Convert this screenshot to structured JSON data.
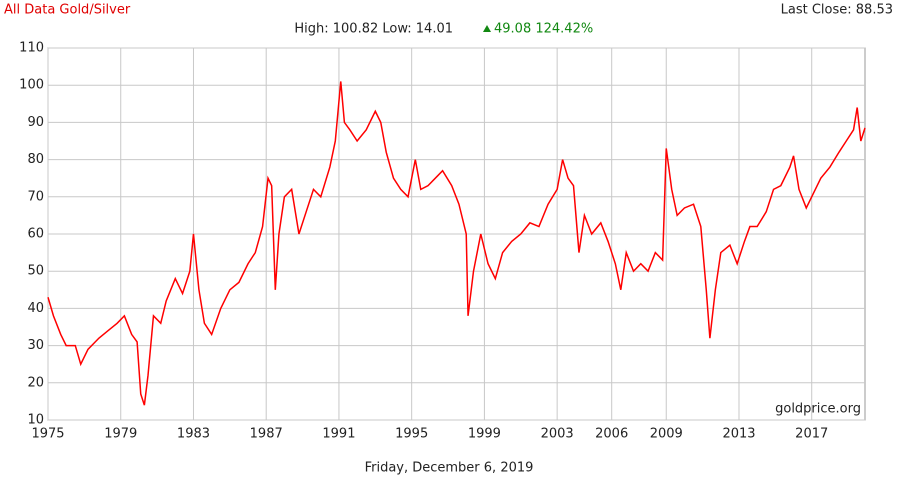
{
  "chart_data": {
    "type": "line",
    "title": "All Data Gold/Silver",
    "last_close": "Last Close: 88.53",
    "stats": "High: 100.82 Low: 14.01",
    "change": "49.08 124.42%",
    "watermark": "goldprice.org",
    "footer": "Friday, December 6, 2019",
    "grid": true,
    "xlim": [
      1975,
      2019.93
    ],
    "ylim": [
      10,
      110
    ],
    "yticks": [
      10,
      20,
      30,
      40,
      50,
      60,
      70,
      80,
      90,
      100,
      110
    ],
    "xticks": [
      1975,
      1979,
      1983,
      1987,
      1991,
      1995,
      1999,
      2003,
      2006,
      2009,
      2013,
      2017
    ],
    "x": [
      1975.0,
      1975.3,
      1975.7,
      1976.0,
      1976.5,
      1976.8,
      1977.2,
      1977.8,
      1978.3,
      1978.8,
      1979.2,
      1979.6,
      1979.9,
      1980.1,
      1980.3,
      1980.5,
      1980.8,
      1981.2,
      1981.5,
      1982.0,
      1982.4,
      1982.8,
      1983.0,
      1983.3,
      1983.6,
      1984.0,
      1984.5,
      1985.0,
      1985.5,
      1986.0,
      1986.4,
      1986.8,
      1987.1,
      1987.3,
      1987.5,
      1987.7,
      1988.0,
      1988.4,
      1988.8,
      1989.2,
      1989.6,
      1990.0,
      1990.5,
      1990.8,
      1991.1,
      1991.3,
      1991.6,
      1992.0,
      1992.5,
      1993.0,
      1993.3,
      1993.6,
      1994.0,
      1994.4,
      1994.8,
      1995.2,
      1995.5,
      1995.9,
      1996.3,
      1996.7,
      1997.2,
      1997.6,
      1998.0,
      1998.1,
      1998.4,
      1998.8,
      1999.2,
      1999.6,
      2000.0,
      2000.5,
      2001.0,
      2001.5,
      2002.0,
      2002.5,
      2003.0,
      2003.3,
      2003.6,
      2003.9,
      2004.2,
      2004.5,
      2004.9,
      2005.4,
      2005.8,
      2006.2,
      2006.5,
      2006.8,
      2007.2,
      2007.6,
      2008.0,
      2008.4,
      2008.8,
      2009.0,
      2009.3,
      2009.6,
      2010.0,
      2010.5,
      2010.9,
      2011.2,
      2011.4,
      2011.7,
      2012.0,
      2012.5,
      2012.9,
      2013.3,
      2013.6,
      2014.0,
      2014.5,
      2014.9,
      2015.3,
      2015.8,
      2016.0,
      2016.3,
      2016.7,
      2017.0,
      2017.5,
      2018.0,
      2018.5,
      2018.9,
      2019.3,
      2019.5,
      2019.7,
      2019.93
    ],
    "series": [
      {
        "name": "Gold/Silver",
        "color": "#ff0000",
        "values": [
          43,
          38,
          33,
          30,
          30,
          25,
          29,
          32,
          34,
          36,
          38,
          33,
          31,
          17,
          14,
          22,
          38,
          36,
          42,
          48,
          44,
          50,
          60,
          45,
          36,
          33,
          40,
          45,
          47,
          52,
          55,
          62,
          75,
          73,
          45,
          60,
          70,
          72,
          60,
          66,
          72,
          70,
          78,
          85,
          101,
          90,
          88,
          85,
          88,
          93,
          90,
          82,
          75,
          72,
          70,
          80,
          72,
          73,
          75,
          77,
          73,
          68,
          60,
          38,
          50,
          60,
          52,
          48,
          55,
          58,
          60,
          63,
          62,
          68,
          72,
          80,
          75,
          73,
          55,
          65,
          60,
          63,
          58,
          52,
          45,
          55,
          50,
          52,
          50,
          55,
          53,
          83,
          72,
          65,
          67,
          68,
          62,
          45,
          32,
          45,
          55,
          57,
          52,
          58,
          62,
          62,
          66,
          72,
          73,
          78,
          81,
          72,
          67,
          70,
          75,
          78,
          82,
          85,
          88,
          94,
          85,
          88.53
        ]
      }
    ]
  }
}
